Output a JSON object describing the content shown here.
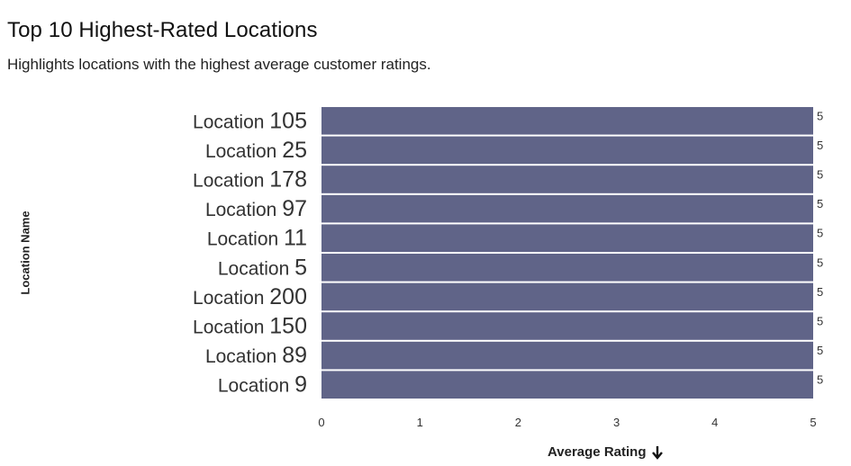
{
  "header": {
    "title": "Top 10 Highest-Rated Locations",
    "subtitle": "Highlights locations with the highest average customer ratings."
  },
  "axis": {
    "y_title": "Location Name",
    "x_title": "Average Rating",
    "sort_icon": "arrow-down-icon"
  },
  "chart_data": {
    "type": "bar",
    "orientation": "horizontal",
    "categories": [
      "Location 105",
      "Location 25",
      "Location 178",
      "Location 97",
      "Location 11",
      "Location 5",
      "Location 200",
      "Location 150",
      "Location 89",
      "Location 9"
    ],
    "values": [
      5,
      5,
      5,
      5,
      5,
      5,
      5,
      5,
      5,
      5
    ],
    "data_labels": [
      "5",
      "5",
      "5",
      "5",
      "5",
      "5",
      "5",
      "5",
      "5",
      "5"
    ],
    "title": "Top 10 Highest-Rated Locations",
    "xlabel": "Average Rating",
    "ylabel": "Location Name",
    "xlim": [
      0,
      5
    ],
    "x_ticks": [
      0,
      1,
      2,
      3,
      4,
      5
    ],
    "grid": false,
    "legend": "none",
    "bar_color": "#606488"
  }
}
